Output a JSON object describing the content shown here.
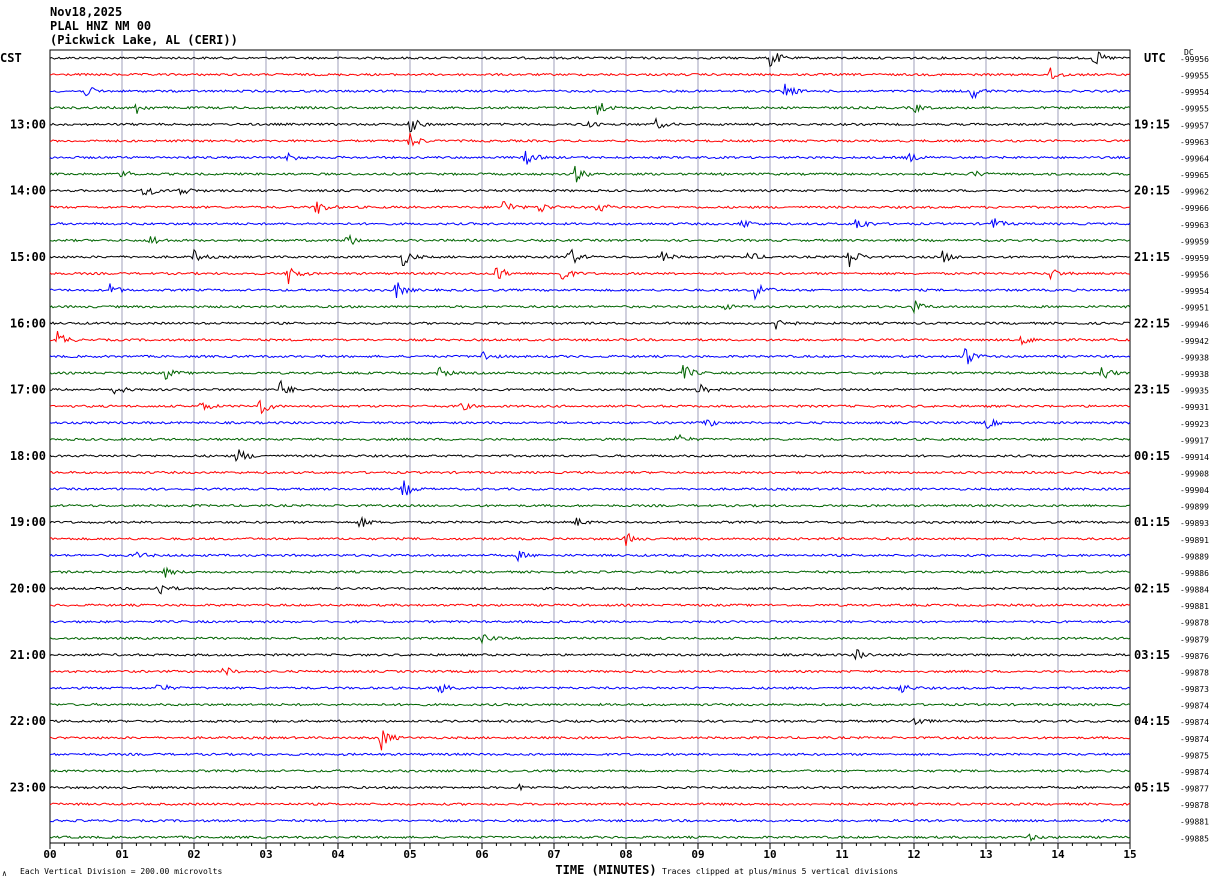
{
  "header": {
    "date": "Nov18,2025",
    "station": "PLAL HNZ NM 00",
    "location": "(Pickwick Lake, AL (CERI))"
  },
  "chart_data": {
    "type": "line",
    "subtype": "helicorder",
    "left_timezone": "CST",
    "right_timezone": "UTC",
    "dc_label": "DC",
    "xlabel": "TIME (MINUTES)",
    "xlim": [
      0,
      15
    ],
    "x_ticks": [
      "00",
      "01",
      "02",
      "03",
      "04",
      "05",
      "06",
      "07",
      "08",
      "09",
      "10",
      "11",
      "12",
      "13",
      "14",
      "15"
    ],
    "left_hour_labels": [
      "13:00",
      "14:00",
      "15:00",
      "16:00",
      "17:00",
      "18:00",
      "19:00",
      "20:00",
      "21:00",
      "22:00",
      "23:00"
    ],
    "right_hour_labels": [
      "19:15",
      "20:15",
      "21:15",
      "22:15",
      "23:15",
      "00:15",
      "01:15",
      "02:15",
      "03:15",
      "04:15",
      "05:15"
    ],
    "first_labeled_row": 4,
    "rows_per_hour": 4,
    "trace_colors": [
      "#000000",
      "#ff0000",
      "#0000ff",
      "#006400"
    ],
    "dc_offsets": [
      "-99956",
      "-99955",
      "-99954",
      "-99955",
      "-99957",
      "-99963",
      "-99964",
      "-99965",
      "-99962",
      "-99966",
      "-99963",
      "-99959",
      "-99959",
      "-99956",
      "-99954",
      "-99951",
      "-99946",
      "-99942",
      "-99938",
      "-99938",
      "-99935",
      "-99931",
      "-99923",
      "-99917",
      "-99914",
      "-99908",
      "-99904",
      "-99899",
      "-99893",
      "-99891",
      "-99889",
      "-99886",
      "-99884",
      "-99881",
      "-99878",
      "-99879",
      "-99876",
      "-99878",
      "-99873",
      "-99874",
      "-99874",
      "-99874",
      "-99875",
      "-99874",
      "-99877",
      "-99878",
      "-99881",
      "-99885"
    ],
    "events": [
      {
        "row": 0,
        "minute": 10.0,
        "amp": 4
      },
      {
        "row": 0,
        "minute": 14.5,
        "amp": 3
      },
      {
        "row": 1,
        "minute": 13.9,
        "amp": 3
      },
      {
        "row": 2,
        "minute": 0.5,
        "amp": 2
      },
      {
        "row": 2,
        "minute": 10.2,
        "amp": 3
      },
      {
        "row": 2,
        "minute": 12.8,
        "amp": 3
      },
      {
        "row": 3,
        "minute": 1.2,
        "amp": 2
      },
      {
        "row": 3,
        "minute": 7.6,
        "amp": 3
      },
      {
        "row": 3,
        "minute": 12.0,
        "amp": 1.5
      },
      {
        "row": 4,
        "minute": 5.0,
        "amp": 3
      },
      {
        "row": 4,
        "minute": 7.4,
        "amp": 2
      },
      {
        "row": 4,
        "minute": 8.4,
        "amp": 2
      },
      {
        "row": 5,
        "minute": 5.0,
        "amp": 3
      },
      {
        "row": 6,
        "minute": 3.3,
        "amp": 2
      },
      {
        "row": 6,
        "minute": 6.6,
        "amp": 3
      },
      {
        "row": 6,
        "minute": 11.9,
        "amp": 2
      },
      {
        "row": 7,
        "minute": 1.0,
        "amp": 1.5
      },
      {
        "row": 7,
        "minute": 7.3,
        "amp": 3
      },
      {
        "row": 7,
        "minute": 12.8,
        "amp": 1.5
      },
      {
        "row": 8,
        "minute": 1.3,
        "amp": 3
      },
      {
        "row": 8,
        "minute": 1.8,
        "amp": 2
      },
      {
        "row": 9,
        "minute": 3.7,
        "amp": 3
      },
      {
        "row": 9,
        "minute": 6.3,
        "amp": 3
      },
      {
        "row": 9,
        "minute": 6.8,
        "amp": 2
      },
      {
        "row": 9,
        "minute": 7.6,
        "amp": 2
      },
      {
        "row": 10,
        "minute": 9.6,
        "amp": 2
      },
      {
        "row": 10,
        "minute": 11.2,
        "amp": 3
      },
      {
        "row": 10,
        "minute": 13.1,
        "amp": 2
      },
      {
        "row": 11,
        "minute": 1.4,
        "amp": 2
      },
      {
        "row": 11,
        "minute": 4.1,
        "amp": 3
      },
      {
        "row": 12,
        "minute": 2.0,
        "amp": 2
      },
      {
        "row": 12,
        "minute": 4.9,
        "amp": 3
      },
      {
        "row": 12,
        "minute": 7.2,
        "amp": 4
      },
      {
        "row": 12,
        "minute": 8.5,
        "amp": 2
      },
      {
        "row": 12,
        "minute": 9.7,
        "amp": 2
      },
      {
        "row": 12,
        "minute": 11.1,
        "amp": 4
      },
      {
        "row": 12,
        "minute": 12.4,
        "amp": 2
      },
      {
        "row": 13,
        "minute": 3.3,
        "amp": 4
      },
      {
        "row": 13,
        "minute": 6.2,
        "amp": 3
      },
      {
        "row": 13,
        "minute": 7.1,
        "amp": 3
      },
      {
        "row": 13,
        "minute": 13.9,
        "amp": 2
      },
      {
        "row": 14,
        "minute": 0.8,
        "amp": 3
      },
      {
        "row": 14,
        "minute": 4.8,
        "amp": 3
      },
      {
        "row": 14,
        "minute": 9.8,
        "amp": 4
      },
      {
        "row": 15,
        "minute": 9.3,
        "amp": 2
      },
      {
        "row": 15,
        "minute": 12.0,
        "amp": 2
      },
      {
        "row": 16,
        "minute": 10.1,
        "amp": 4
      },
      {
        "row": 17,
        "minute": 0.1,
        "amp": 3
      },
      {
        "row": 17,
        "minute": 13.5,
        "amp": 2
      },
      {
        "row": 18,
        "minute": 6.0,
        "amp": 2
      },
      {
        "row": 18,
        "minute": 12.7,
        "amp": 4
      },
      {
        "row": 19,
        "minute": 1.6,
        "amp": 2
      },
      {
        "row": 19,
        "minute": 5.4,
        "amp": 2
      },
      {
        "row": 19,
        "minute": 8.8,
        "amp": 3
      },
      {
        "row": 19,
        "minute": 14.6,
        "amp": 3
      },
      {
        "row": 20,
        "minute": 0.9,
        "amp": 2
      },
      {
        "row": 20,
        "minute": 3.2,
        "amp": 3
      },
      {
        "row": 20,
        "minute": 9.0,
        "amp": 2
      },
      {
        "row": 21,
        "minute": 2.9,
        "amp": 4
      },
      {
        "row": 21,
        "minute": 2.1,
        "amp": 2
      },
      {
        "row": 21,
        "minute": 5.7,
        "amp": 1.5
      },
      {
        "row": 22,
        "minute": 9.1,
        "amp": 2
      },
      {
        "row": 22,
        "minute": 13.0,
        "amp": 2
      },
      {
        "row": 23,
        "minute": 8.7,
        "amp": 2
      },
      {
        "row": 24,
        "minute": 2.6,
        "amp": 3
      },
      {
        "row": 26,
        "minute": 4.9,
        "amp": 3
      },
      {
        "row": 28,
        "minute": 4.3,
        "amp": 2
      },
      {
        "row": 28,
        "minute": 7.3,
        "amp": 1.5
      },
      {
        "row": 29,
        "minute": 8.0,
        "amp": 2
      },
      {
        "row": 30,
        "minute": 1.2,
        "amp": 1.5
      },
      {
        "row": 30,
        "minute": 6.5,
        "amp": 1.5
      },
      {
        "row": 31,
        "minute": 1.6,
        "amp": 1.5
      },
      {
        "row": 32,
        "minute": 1.5,
        "amp": 3
      },
      {
        "row": 35,
        "minute": 6.0,
        "amp": 1.5
      },
      {
        "row": 36,
        "minute": 11.2,
        "amp": 2
      },
      {
        "row": 37,
        "minute": 2.4,
        "amp": 2
      },
      {
        "row": 38,
        "minute": 1.5,
        "amp": 2
      },
      {
        "row": 38,
        "minute": 5.4,
        "amp": 2
      },
      {
        "row": 38,
        "minute": 11.8,
        "amp": 2
      },
      {
        "row": 40,
        "minute": 12.0,
        "amp": 2
      },
      {
        "row": 41,
        "minute": 4.6,
        "amp": 4
      },
      {
        "row": 44,
        "minute": 6.5,
        "amp": 1
      },
      {
        "row": 47,
        "minute": 13.6,
        "amp": 1
      }
    ]
  },
  "footer": {
    "scale_label": "Each Vertical Division =  200.00 microvolts",
    "clip_note": "Traces clipped at plus/minus 5 vertical divisions",
    "corner_mark": "∧"
  }
}
